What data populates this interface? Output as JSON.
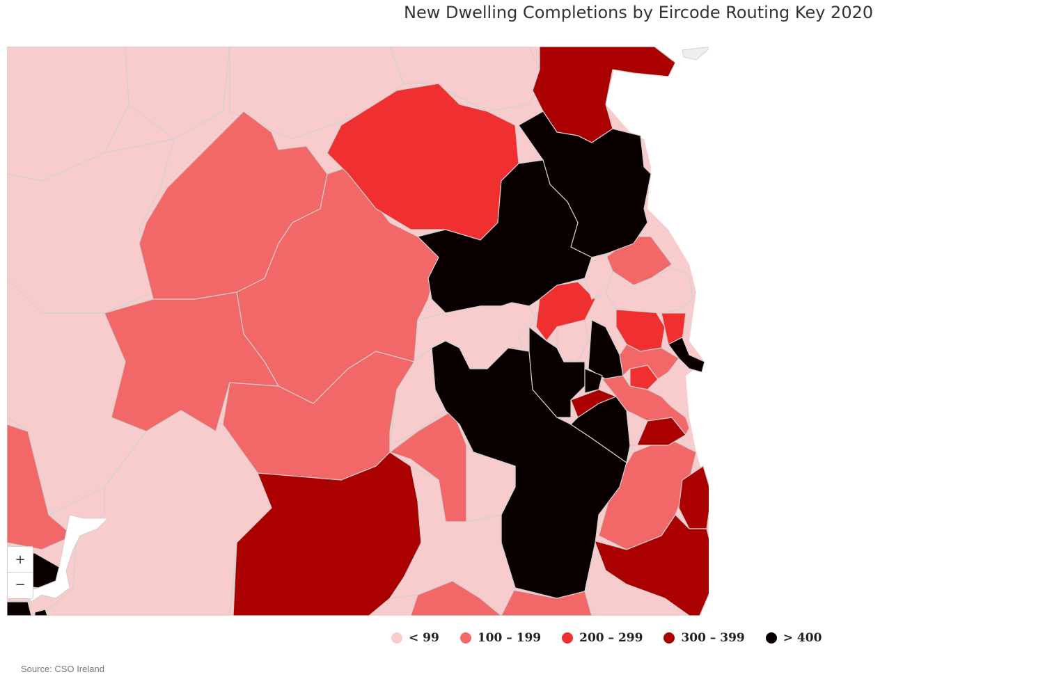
{
  "map": {
    "title": "New Dwelling Completions by Eircode Routing Key 2020",
    "source": "Source: CSO Ireland",
    "zoom_in_label": "+",
    "zoom_out_label": "−",
    "bin_colors": {
      "lt99": "#f8cccc",
      "100_199": "#f26868",
      "200_299": "#f03030",
      "300_399": "#aa0000",
      "gt400": "#0b0000"
    },
    "legend": [
      {
        "label": "< 99",
        "color": "#f8cccc"
      },
      {
        "label": "100 – 199",
        "color": "#f26868"
      },
      {
        "label": "200 – 299",
        "color": "#f03030"
      },
      {
        "label": "300 – 399",
        "color": "#aa0000"
      },
      {
        "label": "> 400",
        "color": "#0b0000"
      }
    ]
  }
}
